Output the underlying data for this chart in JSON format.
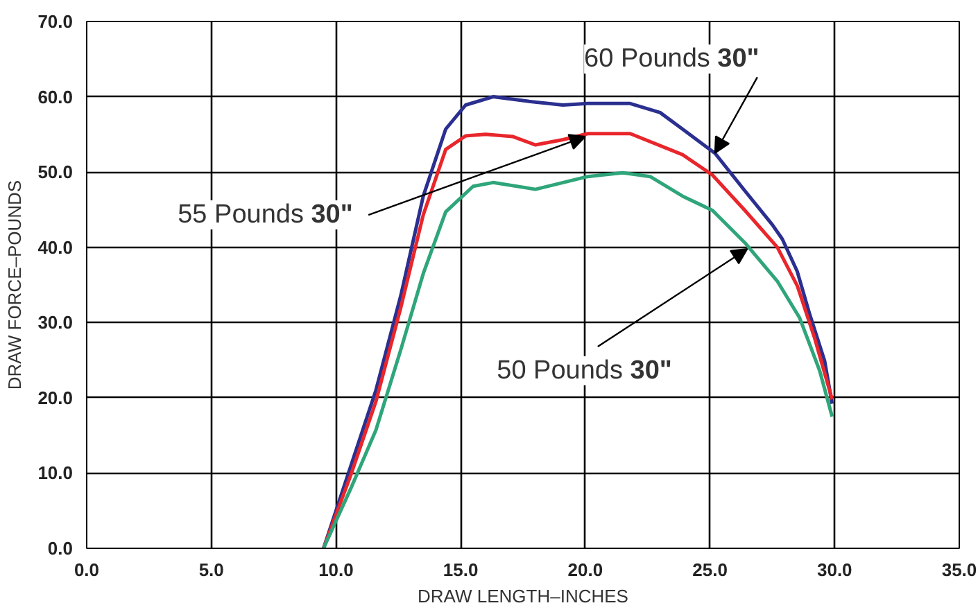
{
  "chart_data": {
    "type": "line",
    "xlabel": "DRAW LENGTH–INCHES",
    "ylabel": "DRAW FORCE–POUNDS",
    "xlim": [
      0,
      35
    ],
    "ylim": [
      0,
      70
    ],
    "xticks": [
      {
        "value": 0,
        "label": "0.0"
      },
      {
        "value": 5,
        "label": "5.0"
      },
      {
        "value": 10,
        "label": "10.0"
      },
      {
        "value": 15,
        "label": "15.0"
      },
      {
        "value": 20,
        "label": "20.0"
      },
      {
        "value": 25,
        "label": "25.0"
      },
      {
        "value": 30,
        "label": "30.0"
      },
      {
        "value": 35,
        "label": "35.0"
      }
    ],
    "yticks": [
      {
        "value": 0,
        "label": "0.0"
      },
      {
        "value": 10,
        "label": "10.0"
      },
      {
        "value": 20,
        "label": "20.0"
      },
      {
        "value": 30,
        "label": "30.0"
      },
      {
        "value": 40,
        "label": "40.0"
      },
      {
        "value": 50,
        "label": "50.0"
      },
      {
        "value": 60,
        "label": "60.0"
      },
      {
        "value": 70,
        "label": "70.0"
      }
    ],
    "grid": true,
    "marker": "none",
    "line_style": "solid",
    "series": [
      {
        "color": "#2b2f8f",
        "x": [
          9.5,
          10.6,
          11.6,
          12.6,
          13.5,
          14.4,
          15.2,
          16.3,
          17.7,
          19.1,
          20.1,
          21.8,
          23.0,
          23.9,
          25.2,
          26.4,
          27.5,
          27.9,
          28.5,
          29.0,
          29.6,
          29.9
        ],
        "values": [
          0,
          11,
          21,
          33.6,
          46.8,
          55.7,
          58.9,
          60,
          59.4,
          58.9,
          59.1,
          59.1,
          57.9,
          55.7,
          52.5,
          47.5,
          43,
          41.1,
          36.8,
          31.1,
          24.9,
          19.2
        ]
      },
      {
        "color": "#e8262b",
        "x": [
          9.5,
          10.6,
          11.6,
          12.6,
          13.5,
          14.4,
          15.2,
          16.0,
          17.1,
          18.0,
          19.1,
          20.1,
          21.8,
          23.9,
          25.1,
          26.4,
          27.7,
          28.5,
          29.2,
          29.9
        ],
        "values": [
          0,
          9.8,
          19.5,
          32,
          44.3,
          53,
          54.8,
          55,
          54.7,
          53.6,
          54.3,
          55.1,
          55.1,
          52.3,
          49.6,
          44.9,
          40,
          34.9,
          27.9,
          19.8
        ]
      },
      {
        "color": "#2fa57a",
        "x": [
          9.5,
          10.6,
          11.6,
          12.6,
          13.5,
          14.4,
          15.5,
          16.3,
          18.0,
          20.1,
          21.5,
          22.6,
          23.9,
          25.1,
          26.4,
          27.7,
          28.6,
          29.4,
          29.9
        ],
        "values": [
          0,
          8,
          15.7,
          26.4,
          36.5,
          44.7,
          48.1,
          48.6,
          47.7,
          49.4,
          49.9,
          49.4,
          46.8,
          44.9,
          40.6,
          35.5,
          30.6,
          23.6,
          17.5
        ]
      }
    ],
    "annotations": [
      {
        "text": "60 Pounds 30\"",
        "x": 25.2,
        "y": 52.5
      },
      {
        "text": "55 Pounds 30\"",
        "x": 20.0,
        "y": 54.7
      },
      {
        "text": "50 Pounds 30\"",
        "x": 26.5,
        "y": 39.8
      }
    ]
  }
}
